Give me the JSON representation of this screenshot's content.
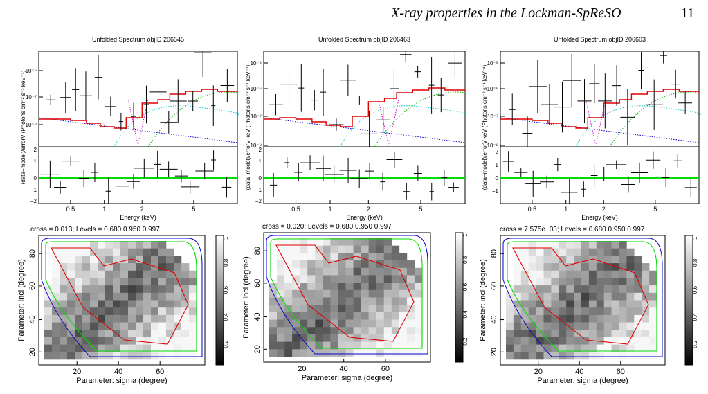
{
  "header": {
    "running_head": "X-ray properties in the Lockman-SpReSO",
    "page_number": "11"
  },
  "spectra": [
    {
      "title": "Unfolded Spectrum objID 206545",
      "ylabel": "(Photons cm⁻² s⁻¹ keV⁻¹)",
      "y_ticks": [
        "10⁻⁶",
        "10⁻⁷",
        "10⁻⁸"
      ],
      "resid_ticks": [
        "2",
        "1",
        "0",
        "−1",
        "−2"
      ],
      "x_ticks": [
        "0.5",
        "1",
        "2",
        "5"
      ],
      "xlabel": "Energy (keV)",
      "resid_ylabel": "(data−model)/error"
    },
    {
      "title": "Unfolded Spectrum objID 206463",
      "ylabel": "keV (Photons cm⁻² s⁻¹ keV⁻¹)",
      "y_ticks": [
        "10⁻⁵",
        "10⁻⁶",
        "10⁻⁷",
        "10⁻⁸"
      ],
      "resid_ticks": [
        "2",
        "1",
        "0",
        "−1",
        "−2"
      ],
      "x_ticks": [
        "0.5",
        "1",
        "2",
        "5"
      ],
      "xlabel": "Energy (keV)",
      "resid_ylabel": "(data−model)/error"
    },
    {
      "title": "Unfolded Spectrum objID 206603",
      "ylabel": "keV (Photons cm⁻² s⁻¹ keV⁻¹)",
      "y_ticks": [
        "10⁻⁵",
        "10⁻⁶",
        "10⁻⁷",
        "10⁻⁸"
      ],
      "resid_ticks": [
        "2",
        "1",
        "0",
        "−1"
      ],
      "x_ticks": [
        "0.5",
        "1",
        "2",
        "5"
      ],
      "xlabel": "Energy (keV)",
      "resid_ylabel": "(data−model)/error"
    }
  ],
  "contours": [
    {
      "caption": "cross = 0.013; Levels =  0.680 0.950 0.997",
      "xlabel": "Parameter: sigma (degree)",
      "ylabel": "Parameter: incl (degree)",
      "x_ticks": [
        "20",
        "40",
        "60"
      ],
      "y_ticks": [
        "80",
        "60",
        "40",
        "20"
      ],
      "cbar_ticks": [
        "1",
        "0.8",
        "0.6",
        "0.4",
        "0.2"
      ]
    },
    {
      "caption": "cross = 0.020; Levels =  0.680 0.950 0.997",
      "xlabel": "Parameter: sigma (degree)",
      "ylabel": "Parameter: incl (degree)",
      "x_ticks": [
        "20",
        "40",
        "60"
      ],
      "y_ticks": [
        "80",
        "60",
        "40",
        "20"
      ],
      "cbar_ticks": [
        "1",
        "0.8",
        "0.6",
        "0.4",
        "0.2"
      ]
    },
    {
      "caption": "cross = 7.575e−03; Levels =  0.680 0.950 0.997",
      "xlabel": "Parameter: sigma (degree)",
      "ylabel": "Parameter: incl (degree)",
      "x_ticks": [
        "20",
        "40",
        "60"
      ],
      "y_ticks": [
        "80",
        "60",
        "40",
        "20"
      ],
      "cbar_ticks": [
        "1",
        "0.8",
        "0.6",
        "0.4",
        "0.2"
      ]
    }
  ],
  "colors": {
    "model": "#e00000",
    "residual_zero": "#00dd00",
    "comp_cyan": "#00c8c8",
    "comp_green": "#00b400",
    "comp_blue": "#0000c8",
    "comp_magenta": "#c800c8",
    "contour_red": "#e00000",
    "contour_green": "#00dd00",
    "contour_blue": "#0000cc"
  }
}
